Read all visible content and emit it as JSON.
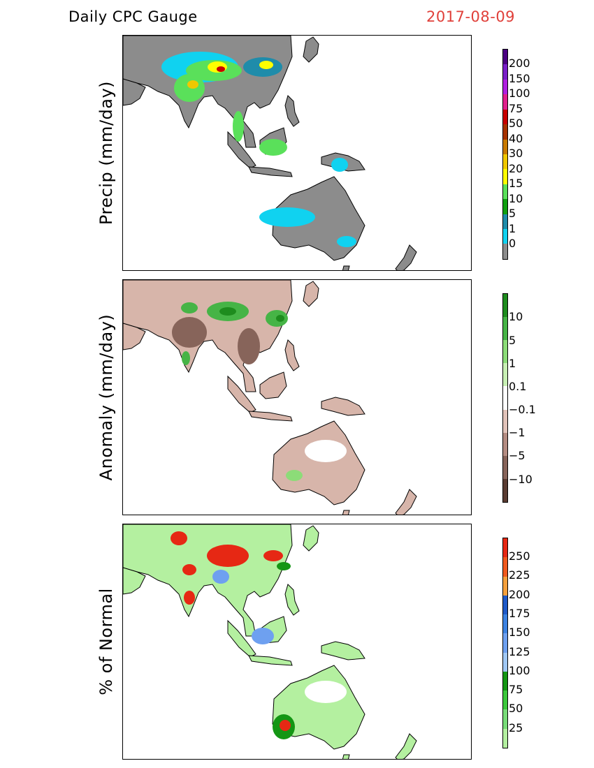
{
  "header": {
    "title": "Daily CPC Gauge",
    "date": "2017-08-09"
  },
  "panels": [
    {
      "id": "precip",
      "ylabel": "Precip (mm/day)",
      "ocean_color": "#ffffff",
      "land_base_color": "#8c8c8c",
      "legend": {
        "labels": [
          "200",
          "150",
          "100",
          "75",
          "50",
          "40",
          "30",
          "20",
          "15",
          "10",
          "5",
          "1",
          "0"
        ],
        "colors": [
          "#4b0082",
          "#7a1fc8",
          "#b020e0",
          "#e0208c",
          "#c80000",
          "#a63200",
          "#c87a00",
          "#f0c800",
          "#ffff00",
          "#5ae05a",
          "#10a010",
          "#1f8caa",
          "#10d2f0",
          "#8c8c8c"
        ]
      }
    },
    {
      "id": "anomaly",
      "ylabel": "Anomaly (mm/day)",
      "ocean_color": "#ffffff",
      "land_base_color": "#d7b5aa",
      "legend": {
        "labels": [
          "10",
          "5",
          "1",
          "0.1",
          "−0.1",
          "−1",
          "−5",
          "−10"
        ],
        "colors": [
          "#1e8c1e",
          "#46b446",
          "#8cdc78",
          "#c8f0b4",
          "#ffffff",
          "#e1c3b9",
          "#b48c82",
          "#87645a",
          "#5a3c32"
        ]
      }
    },
    {
      "id": "percent",
      "ylabel": "% of Normal",
      "ocean_color": "#ffffff",
      "land_base_color": "#b4f0a0",
      "legend": {
        "labels": [
          "250",
          "225",
          "200",
          "175",
          "150",
          "125",
          "100",
          "75",
          "50",
          "25"
        ],
        "colors": [
          "#e62814",
          "#f05a1e",
          "#f5a03c",
          "#1e5ac8",
          "#3c82e1",
          "#6ea0f0",
          "#a0c8f5",
          "#149614",
          "#3cc83c",
          "#78dc78",
          "#b4f0a0"
        ]
      }
    }
  ]
}
